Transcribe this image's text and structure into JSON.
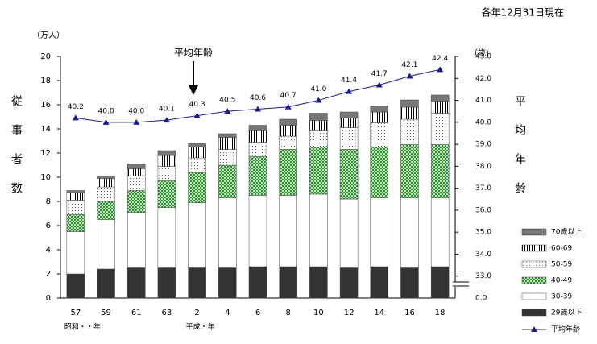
{
  "chart_data": {
    "type": "bar",
    "stacked": true,
    "note": "各年12月31日現在",
    "y_unit": "（万人）",
    "y2_unit": "（歳）",
    "y_label": "従事者数",
    "y2_label": "平均年齢",
    "annotation": "平均年齢",
    "era_labels": [
      {
        "index": 0,
        "label": "昭和・・年"
      },
      {
        "index": 4,
        "label": "平成・年"
      }
    ],
    "categories": [
      "57",
      "59",
      "61",
      "63",
      "2",
      "4",
      "6",
      "8",
      "10",
      "12",
      "14",
      "16",
      "18"
    ],
    "ylim": [
      0,
      20
    ],
    "yticks": [
      0,
      2,
      4,
      6,
      8,
      10,
      12,
      14,
      16,
      18,
      20
    ],
    "y2lim": [
      32,
      43
    ],
    "y2_break_label": "0.0",
    "y2ticks": [
      {
        "value": 33,
        "label": "33.0"
      },
      {
        "value": 34,
        "label": "34.0"
      },
      {
        "value": 35,
        "label": "35.0"
      },
      {
        "value": 36,
        "label": "36.0"
      },
      {
        "value": 37,
        "label": "37.0"
      },
      {
        "value": 38,
        "label": "38.0"
      },
      {
        "value": 39,
        "label": "39.0"
      },
      {
        "value": 40,
        "label": "40.0"
      },
      {
        "value": 41,
        "label": "41.0"
      },
      {
        "value": 42,
        "label": "42.0"
      },
      {
        "value": 43,
        "label": "43.0"
      }
    ],
    "grid": false,
    "series": [
      {
        "name": "29歳以下",
        "color": "#333333",
        "pattern": "solid",
        "values": [
          2.0,
          2.4,
          2.5,
          2.5,
          2.5,
          2.5,
          2.6,
          2.6,
          2.6,
          2.5,
          2.6,
          2.5,
          2.6
        ]
      },
      {
        "name": "30-39",
        "color": "#ffffff",
        "pattern": "solid",
        "values": [
          3.5,
          4.1,
          4.6,
          5.0,
          5.4,
          5.8,
          5.9,
          5.9,
          6.0,
          5.7,
          5.7,
          5.8,
          5.7
        ]
      },
      {
        "name": "40-49",
        "color": "#2e8b2e",
        "pattern": "check",
        "values": [
          1.4,
          1.5,
          1.8,
          2.2,
          2.5,
          2.7,
          3.2,
          3.8,
          3.9,
          4.1,
          4.2,
          4.4,
          4.4
        ]
      },
      {
        "name": "50-59",
        "color": "#666666",
        "pattern": "dots",
        "values": [
          1.2,
          1.2,
          1.2,
          1.2,
          1.2,
          1.3,
          1.2,
          1.1,
          1.4,
          1.8,
          2.0,
          2.1,
          2.6
        ]
      },
      {
        "name": "60-69",
        "color": "#000000",
        "pattern": "vstripe",
        "values": [
          0.6,
          0.7,
          0.6,
          0.9,
          0.9,
          1.0,
          1.0,
          0.9,
          0.8,
          0.8,
          0.9,
          1.0,
          1.0
        ]
      },
      {
        "name": "70歳以上",
        "color": "#777777",
        "pattern": "solid",
        "values": [
          0.2,
          0.2,
          0.4,
          0.4,
          0.3,
          0.3,
          0.4,
          0.5,
          0.6,
          0.5,
          0.5,
          0.6,
          0.5
        ]
      },
      {
        "name": "平均年齢",
        "type": "line",
        "axis": "y2",
        "color": "#1a1a8c",
        "values": [
          40.2,
          40.0,
          40.0,
          40.1,
          40.3,
          40.5,
          40.6,
          40.7,
          41.0,
          41.4,
          41.7,
          42.1,
          42.4
        ],
        "value_labels": [
          "40.2",
          "40.0",
          "40.0",
          "40.1",
          "40.3",
          "40.5",
          "40.6",
          "40.7",
          "41.0",
          "41.4",
          "41.7",
          "42.1",
          "42.4"
        ]
      }
    ]
  }
}
